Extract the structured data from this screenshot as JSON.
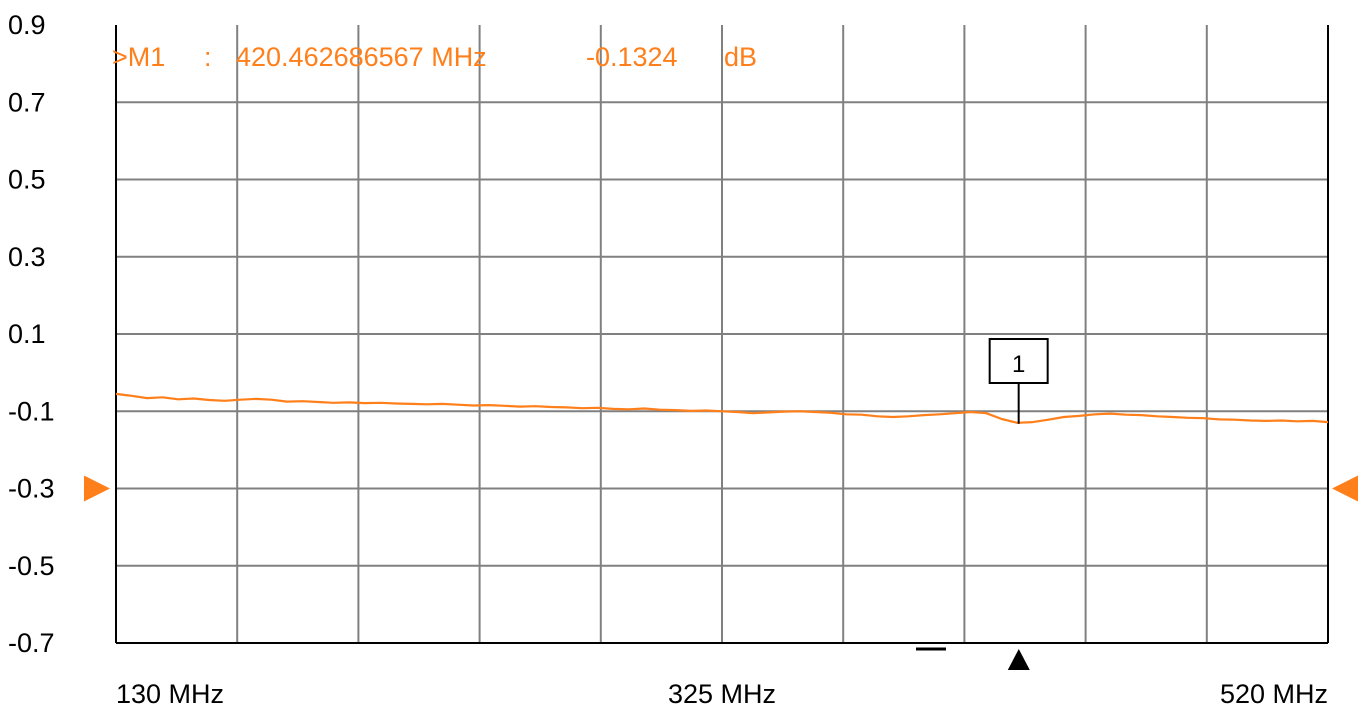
{
  "colors": {
    "background": "#ffffff",
    "grid": "#808080",
    "trace": "#ff7f1a",
    "reference_arrow": "#ff7f1a",
    "marker_readout": "#ff7f1a",
    "axis_frame": "#000000"
  },
  "marker_readout": {
    "prefix": ">M1",
    "separator": ":",
    "frequency": "420.462686567 MHz",
    "value": "-0.1324",
    "unit": "dB"
  },
  "marker_box_label": "1",
  "chart_data": {
    "type": "line",
    "title": "",
    "xlabel": "",
    "ylabel": "",
    "x_unit": "MHz",
    "y_unit": "dB",
    "xlim": [
      130,
      520
    ],
    "ylim": [
      -0.7,
      0.9
    ],
    "yticks": [
      0.9,
      0.7,
      0.5,
      0.3,
      0.1,
      -0.1,
      -0.3,
      -0.5,
      -0.7
    ],
    "ytick_labels": [
      "0.9",
      "0.7",
      "0.5",
      "0.3",
      "0.1",
      "-0.1",
      "-0.3",
      "-0.5",
      "-0.7"
    ],
    "xtick_labels": [
      {
        "value": 130,
        "label": "130 MHz"
      },
      {
        "value": 325,
        "label": "325 MHz"
      },
      {
        "value": 520,
        "label": "520 MHz"
      }
    ],
    "x_grid_divisions": 10,
    "y_grid_divisions": 8,
    "grid": true,
    "reference_level": -0.3,
    "marker": {
      "name": "M1",
      "x": 420.462686567,
      "y": -0.1324
    },
    "stimulus_indicator_x": 420.5,
    "series": [
      {
        "x": [
          130,
          135,
          140,
          145,
          150,
          155,
          160,
          165,
          170,
          175,
          180,
          185,
          190,
          195,
          200,
          205,
          210,
          215,
          220,
          225,
          230,
          235,
          240,
          245,
          250,
          255,
          260,
          265,
          270,
          275,
          280,
          285,
          290,
          295,
          300,
          305,
          310,
          315,
          320,
          325,
          330,
          335,
          340,
          345,
          350,
          355,
          360,
          365,
          370,
          375,
          380,
          385,
          390,
          395,
          400,
          405,
          410,
          415,
          420,
          425,
          430,
          435,
          440,
          445,
          450,
          455,
          460,
          465,
          470,
          475,
          480,
          485,
          490,
          495,
          500,
          505,
          510,
          515,
          520
        ],
        "values": [
          -0.055,
          -0.06,
          -0.066,
          -0.064,
          -0.069,
          -0.067,
          -0.071,
          -0.073,
          -0.07,
          -0.068,
          -0.07,
          -0.075,
          -0.074,
          -0.076,
          -0.078,
          -0.077,
          -0.079,
          -0.078,
          -0.08,
          -0.081,
          -0.082,
          -0.081,
          -0.083,
          -0.085,
          -0.084,
          -0.086,
          -0.088,
          -0.087,
          -0.089,
          -0.09,
          -0.092,
          -0.091,
          -0.094,
          -0.095,
          -0.093,
          -0.096,
          -0.097,
          -0.099,
          -0.098,
          -0.1,
          -0.102,
          -0.105,
          -0.103,
          -0.101,
          -0.1,
          -0.102,
          -0.104,
          -0.108,
          -0.109,
          -0.113,
          -0.115,
          -0.113,
          -0.11,
          -0.108,
          -0.105,
          -0.102,
          -0.105,
          -0.12,
          -0.13,
          -0.128,
          -0.122,
          -0.115,
          -0.112,
          -0.108,
          -0.106,
          -0.109,
          -0.11,
          -0.113,
          -0.115,
          -0.117,
          -0.118,
          -0.121,
          -0.122,
          -0.124,
          -0.125,
          -0.124,
          -0.126,
          -0.125,
          -0.128
        ]
      }
    ]
  }
}
